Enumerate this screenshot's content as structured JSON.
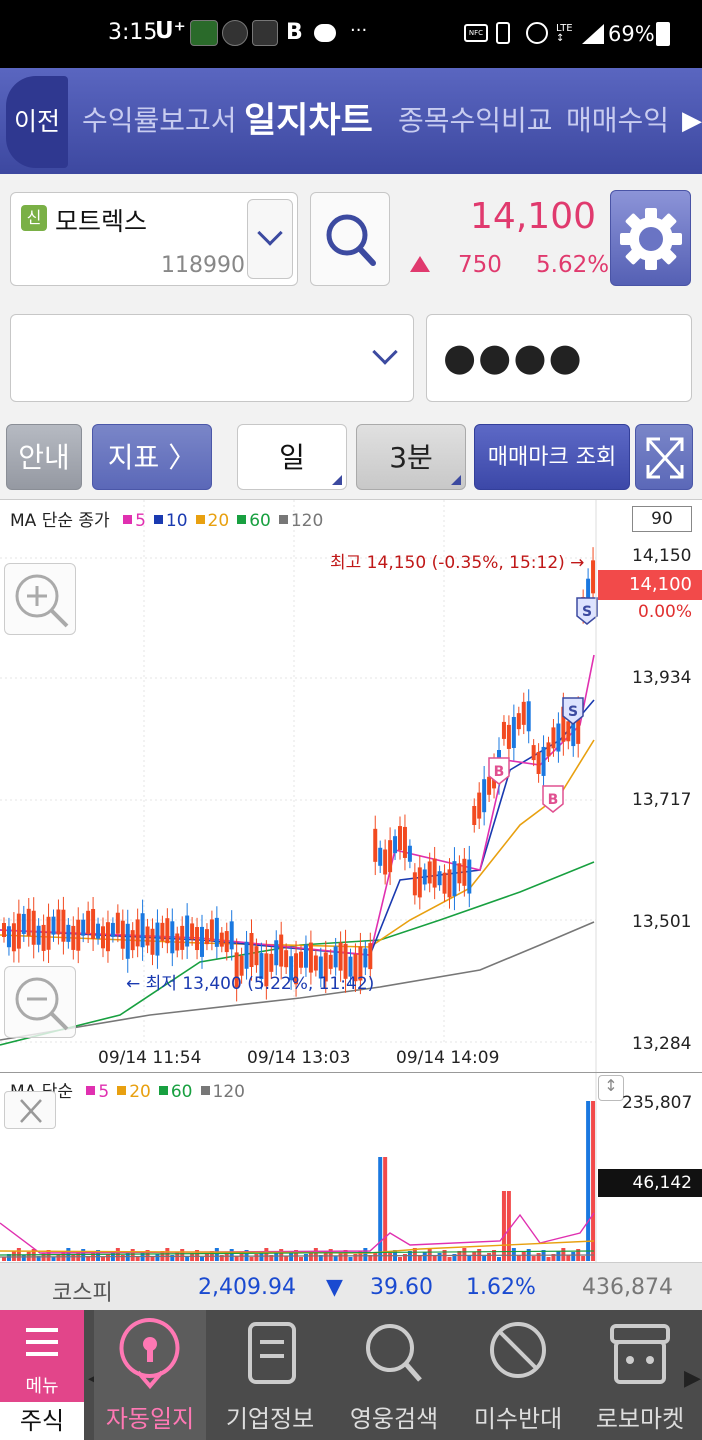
{
  "status_bar": {
    "time": "3:15",
    "carrier": "U⁺",
    "battery": "69%",
    "right_icons": [
      "nfc-icon",
      "vibrate-icon",
      "alarm-icon",
      "lte-icon",
      "signal-icon",
      "battery-icon"
    ]
  },
  "nav": {
    "back": "이전",
    "tabs": [
      "수익률보고서",
      "일지차트",
      "종목수익비교",
      "매매수익"
    ],
    "active_tab": "일지차트"
  },
  "stock": {
    "badge": "신",
    "name": "모트렉스",
    "code": "118990",
    "price": "14,100",
    "change": "750",
    "change_pct": "5.62%",
    "up_color": "#e03a6e"
  },
  "account": {
    "password_mask": "●●●●"
  },
  "toolbar": {
    "guide": "안내",
    "indicator": "지표 〉",
    "period": "일",
    "interval": "3분",
    "trade_mark": "매매마크 조회"
  },
  "chart": {
    "legend_title": "MA 단순 종가",
    "ma_legend": [
      {
        "label": "5",
        "color": "#e030b0"
      },
      {
        "label": "10",
        "color": "#1a3ab0"
      },
      {
        "label": "20",
        "color": "#e8a010"
      },
      {
        "label": "60",
        "color": "#18a040"
      },
      {
        "label": "120",
        "color": "#777777"
      }
    ],
    "period_box": "90",
    "price_ticks": [
      "14,150",
      "13,934",
      "13,717",
      "13,501",
      "13,284"
    ],
    "current_price": "14,100",
    "current_pct": "0.00%",
    "high_label": "최고 14,150 (-0.35%, 15:12) →",
    "low_label": "← 최저 13,400 (5.22%, 11:42)",
    "time_labels": [
      "09/14 11:54",
      "09/14 13:03",
      "09/14 14:09"
    ],
    "marks": {
      "buy": "B",
      "sell": "S"
    }
  },
  "volume": {
    "legend_title": "MA 단순",
    "ma_legend": [
      {
        "label": "5",
        "color": "#e030b0"
      },
      {
        "label": "20",
        "color": "#e8a010"
      },
      {
        "label": "60",
        "color": "#18a040"
      },
      {
        "label": "120",
        "color": "#777777"
      }
    ],
    "max_tick": "235,807",
    "current": "46,142"
  },
  "kospi": {
    "name": "코스피",
    "value": "2,409.94",
    "arrow": "▼",
    "change": "39.60",
    "pct": "1.62%",
    "volume": "436,874",
    "down_color": "#1a4ad0"
  },
  "bottom_nav": {
    "menu": "메뉴",
    "stock": "주식",
    "items": [
      "자동일지",
      "기업정보",
      "영웅검색",
      "미수반대",
      "로보마켓"
    ]
  }
}
